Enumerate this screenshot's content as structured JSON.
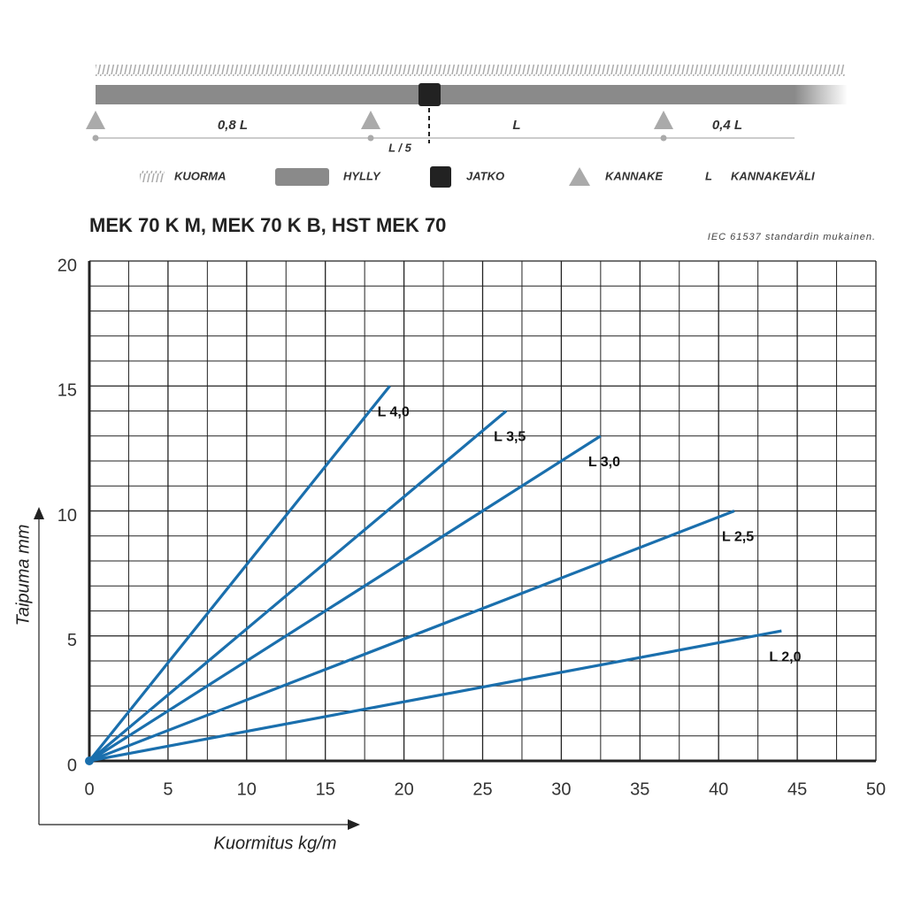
{
  "diagram": {
    "spans": [
      "0,8 L",
      "L",
      "0,4 L"
    ],
    "offset_label": "L / 5",
    "legend": [
      {
        "label": "KUORMA"
      },
      {
        "label": "HYLLY"
      },
      {
        "label": "JATKO"
      },
      {
        "label": "KANNAKE"
      },
      {
        "key": "L",
        "label": "KANNAKEVÄLI"
      }
    ]
  },
  "chart_data": {
    "type": "line",
    "title": "MEK 70 K M, MEK 70 K B, HST MEK 70",
    "note": "IEC 61537 standardin mukainen.",
    "x_label": "Kuormitus kg/m",
    "y_label": "Taipuma mm",
    "xlim": [
      0,
      50
    ],
    "ylim": [
      0,
      20
    ],
    "xticks": [
      0,
      5,
      10,
      15,
      20,
      25,
      30,
      35,
      40,
      45,
      50
    ],
    "yticks": [
      0,
      5,
      10,
      15,
      20
    ],
    "minor_xticks": [
      2.5,
      7.5,
      12.5,
      17.5,
      22.5,
      27.5,
      32.5,
      37.5,
      42.5,
      47.5
    ],
    "minor_yticks": [
      1,
      2,
      3,
      4,
      6,
      7,
      8,
      9,
      11,
      12,
      13,
      14,
      16,
      17,
      18,
      19
    ],
    "grid": true,
    "series": [
      {
        "name": "L 4,0",
        "color": "#1a6fad",
        "x": [
          0,
          19.1
        ],
        "values": [
          0,
          15
        ]
      },
      {
        "name": "L 3,5",
        "color": "#1a6fad",
        "x": [
          0,
          26.5
        ],
        "values": [
          0,
          14
        ]
      },
      {
        "name": "L 3,0",
        "color": "#1a6fad",
        "x": [
          0,
          32.5
        ],
        "values": [
          0,
          13
        ]
      },
      {
        "name": "L 2,5",
        "color": "#1a6fad",
        "x": [
          0,
          41
        ],
        "values": [
          0,
          10
        ]
      },
      {
        "name": "L 2,0",
        "color": "#1a6fad",
        "x": [
          0,
          44
        ],
        "values": [
          0,
          5.2
        ]
      }
    ]
  }
}
